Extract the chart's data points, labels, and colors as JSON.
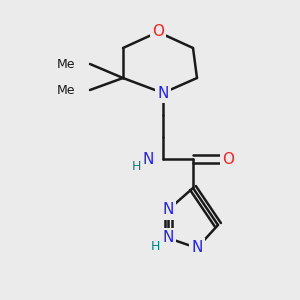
{
  "background_color": "#ebebeb",
  "bond_color": "#1a1a1a",
  "bond_width": 1.8,
  "atom_colors": {
    "N": "#2020ff",
    "O": "#ff2020",
    "H": "#008080"
  },
  "figsize": [
    3.0,
    3.0
  ],
  "dpi": 100
}
